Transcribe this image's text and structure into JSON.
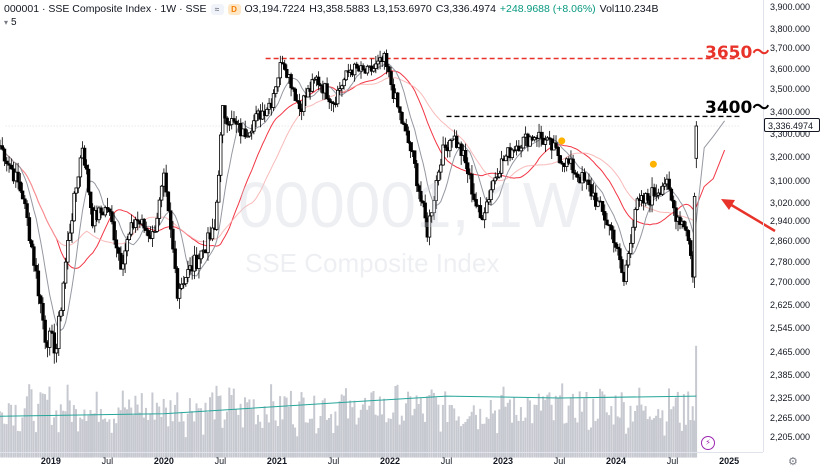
{
  "legend": {
    "symbol": "000001 · SSE Composite Index · 1W · SSE",
    "badge_1": "≈",
    "badge_2": "D",
    "open": "O3,194.7224",
    "high": "H3,358.5883",
    "low": "L3,153.6970",
    "close": "C3,336.4974",
    "change": "+248.9688 (+8.06%)",
    "volume": "Vol110.234B",
    "indicator_value": "5"
  },
  "watermark": {
    "symbol": "000001, 1W",
    "name": "SSE Composite Index"
  },
  "annotations": {
    "level_high": "3650～",
    "level_mid": "3400～"
  },
  "last_price_label": "3,336.4974",
  "colors": {
    "up": "#089981",
    "candle": "#000000",
    "ma_fast": "#9598a1",
    "ma_slow": "#f23645",
    "ma_slow_light": "#f7a9a9",
    "volume_bar": "#c7c9d1",
    "volume_ma": "#26a69a",
    "annot_red": "#e8332a",
    "arrow_red": "#e8332a",
    "marker": "#ffb300"
  },
  "chart_data": {
    "type": "candlestick",
    "interval": "1W",
    "y_axis": {
      "min": 2140,
      "max": 3980,
      "ticks": [
        3900,
        3800,
        3700,
        3600,
        3500,
        3400,
        3300,
        3200,
        3100,
        3020,
        2940,
        2860,
        2780,
        2700,
        2625,
        2545,
        2465,
        2385,
        2325,
        2265,
        2205
      ],
      "tick_labels": [
        "3,900.000",
        "3,800.000",
        "3,700.000",
        "3,600.000",
        "3,500.000",
        "3,400.000",
        "3,300.000",
        "3,200.000",
        "3,100.000",
        "3,020.000",
        "2,940.000",
        "2,860.000",
        "2,780.000",
        "2,700.000",
        "2,625.000",
        "2,545.000",
        "2,465.000",
        "2,385.000",
        "2,325.000",
        "2,265.000",
        "2,205.000"
      ]
    },
    "x_axis": {
      "labels": [
        "2019",
        "Jul",
        "2020",
        "Jul",
        "2021",
        "Jul",
        "2022",
        "Jul",
        "2023",
        "Jul",
        "2024",
        "Jul",
        "2025"
      ],
      "years": [
        2019,
        2019.5,
        2020,
        2020.5,
        2021,
        2021.5,
        2022,
        2022.5,
        2023,
        2023.5,
        2024,
        2024.5,
        2025
      ],
      "bold": [
        true,
        false,
        true,
        false,
        true,
        false,
        true,
        false,
        true,
        false,
        true,
        false,
        true
      ]
    },
    "horizontal_levels": [
      {
        "name": "level-3650",
        "value": 3650,
        "from": 2020.9,
        "to": 2025.1,
        "color": "#e8332a"
      },
      {
        "name": "level-3400",
        "value": 3380,
        "from": 2022.5,
        "to": 2025.1,
        "color": "#000000"
      },
      {
        "name": "last-price",
        "value": 3336.4974,
        "from": 2018.6,
        "to": 2025.1,
        "color": "#d1d4dc"
      }
    ],
    "anchors": [
      [
        2018.55,
        3250
      ],
      [
        2018.75,
        3050
      ],
      [
        2018.95,
        2520
      ],
      [
        2019.05,
        2480
      ],
      [
        2019.15,
        2850
      ],
      [
        2019.28,
        3250
      ],
      [
        2019.37,
        2950
      ],
      [
        2019.5,
        3000
      ],
      [
        2019.62,
        2780
      ],
      [
        2019.75,
        2950
      ],
      [
        2019.9,
        2880
      ],
      [
        2020.0,
        3100
      ],
      [
        2020.12,
        2680
      ],
      [
        2020.25,
        2760
      ],
      [
        2020.45,
        2900
      ],
      [
        2020.52,
        3400
      ],
      [
        2020.7,
        3300
      ],
      [
        2020.95,
        3450
      ],
      [
        2021.05,
        3650
      ],
      [
        2021.2,
        3420
      ],
      [
        2021.35,
        3550
      ],
      [
        2021.5,
        3450
      ],
      [
        2021.65,
        3600
      ],
      [
        2021.8,
        3580
      ],
      [
        2021.95,
        3640
      ],
      [
        2022.05,
        3450
      ],
      [
        2022.2,
        3200
      ],
      [
        2022.33,
        2900
      ],
      [
        2022.45,
        3200
      ],
      [
        2022.55,
        3300
      ],
      [
        2022.65,
        3200
      ],
      [
        2022.8,
        2950
      ],
      [
        2022.95,
        3150
      ],
      [
        2023.1,
        3250
      ],
      [
        2023.3,
        3300
      ],
      [
        2023.45,
        3230
      ],
      [
        2023.62,
        3150
      ],
      [
        2023.8,
        3050
      ],
      [
        2023.98,
        2880
      ],
      [
        2024.07,
        2700
      ],
      [
        2024.17,
        3000
      ],
      [
        2024.3,
        3040
      ],
      [
        2024.43,
        3100
      ],
      [
        2024.53,
        2970
      ],
      [
        2024.62,
        2920
      ],
      [
        2024.68,
        2740
      ],
      [
        2024.71,
        3336
      ]
    ],
    "ma_fast_future": [
      [
        2024.71,
        3140
      ],
      [
        2024.78,
        3240
      ],
      [
        2024.86,
        3290
      ],
      [
        2024.96,
        3360
      ]
    ],
    "ma_slow_future": [
      [
        2024.71,
        3010
      ],
      [
        2024.78,
        3080
      ],
      [
        2024.86,
        3110
      ],
      [
        2024.96,
        3230
      ]
    ],
    "markers": [
      [
        2023.52,
        3270
      ],
      [
        2024.33,
        3170
      ]
    ],
    "volume": {
      "baseline": 2140,
      "max_height": 2470,
      "avg_line": [
        [
          2018.55,
          2270
        ],
        [
          2020.0,
          2278
        ],
        [
          2021.5,
          2310
        ],
        [
          2022.5,
          2330
        ],
        [
          2023.5,
          2325
        ],
        [
          2024.71,
          2330
        ]
      ]
    },
    "last_close": 3336.4974,
    "series": [
      {
        "name": "Price",
        "type": "candlestick"
      },
      {
        "name": "MA fast",
        "type": "line"
      },
      {
        "name": "MA slow",
        "type": "line"
      },
      {
        "name": "Volume",
        "type": "bar"
      }
    ]
  }
}
